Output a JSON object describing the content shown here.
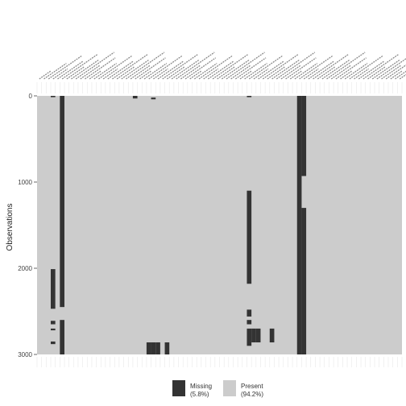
{
  "chart_data": {
    "type": "heatmap",
    "title": "",
    "ylabel": "Observations",
    "xlabel": "",
    "n_observations": 3000,
    "n_columns": 80,
    "y_ticks": [
      0,
      1000,
      2000,
      3000
    ],
    "ylim": [
      0,
      3000
    ],
    "grid": true,
    "legend_position": "bottom",
    "colors": {
      "missing": "#333333",
      "present": "#cccccc",
      "background": "#ffffff",
      "grid": "#e8e8e8"
    },
    "legend": [
      {
        "key": "missing",
        "label": "Missing",
        "percent": "(5.8%)"
      },
      {
        "key": "present",
        "label": "Present",
        "percent": "(94.2%)"
      }
    ],
    "column_labels_note": "Column labels are rotated and illegible in the source.",
    "missing_blocks": [
      {
        "col": 3,
        "start": 0,
        "end": 15
      },
      {
        "col": 3,
        "start": 2010,
        "end": 2470
      },
      {
        "col": 3,
        "start": 2610,
        "end": 2650
      },
      {
        "col": 3,
        "start": 2700,
        "end": 2720
      },
      {
        "col": 3,
        "start": 2850,
        "end": 2880
      },
      {
        "col": 5,
        "start": 0,
        "end": 2450
      },
      {
        "col": 5,
        "start": 2600,
        "end": 3000
      },
      {
        "col": 21,
        "start": 0,
        "end": 30
      },
      {
        "col": 25,
        "start": 20,
        "end": 40
      },
      {
        "col": 24,
        "start": 2860,
        "end": 3000
      },
      {
        "col": 25,
        "start": 2860,
        "end": 3000
      },
      {
        "col": 26,
        "start": 2860,
        "end": 3000
      },
      {
        "col": 28,
        "start": 2860,
        "end": 3000
      },
      {
        "col": 46,
        "start": 0,
        "end": 15
      },
      {
        "col": 46,
        "start": 1100,
        "end": 2180
      },
      {
        "col": 46,
        "start": 2480,
        "end": 2560
      },
      {
        "col": 46,
        "start": 2600,
        "end": 2650
      },
      {
        "col": 46,
        "start": 2700,
        "end": 2900
      },
      {
        "col": 47,
        "start": 2700,
        "end": 2860
      },
      {
        "col": 48,
        "start": 2700,
        "end": 2860
      },
      {
        "col": 51,
        "start": 2700,
        "end": 2860
      },
      {
        "col": 57,
        "start": 0,
        "end": 3000
      },
      {
        "col": 58,
        "start": 0,
        "end": 930
      },
      {
        "col": 58,
        "start": 1300,
        "end": 3000
      }
    ]
  }
}
